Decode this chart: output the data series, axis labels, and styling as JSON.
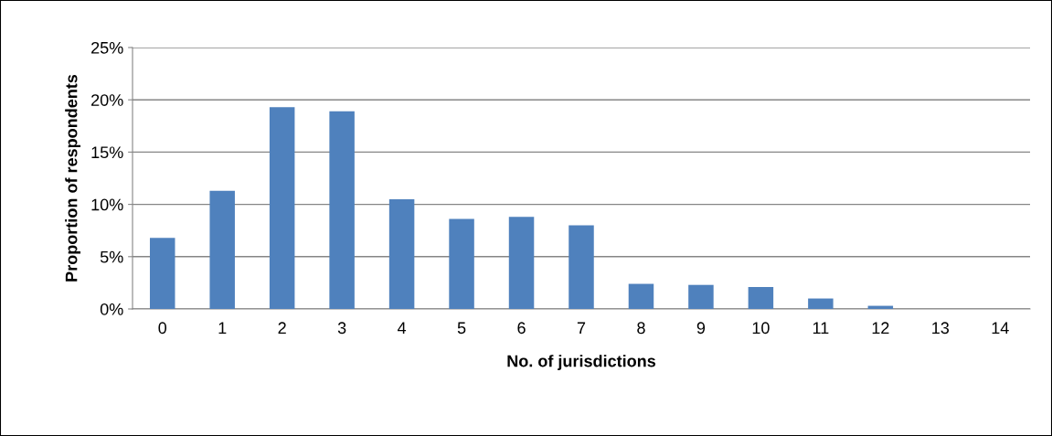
{
  "chart_data": {
    "type": "bar",
    "xlabel": "No. of jurisdictions",
    "ylabel": "Proportion of respondents",
    "categories": [
      "0",
      "1",
      "2",
      "3",
      "4",
      "5",
      "6",
      "7",
      "8",
      "9",
      "10",
      "11",
      "12",
      "13",
      "14"
    ],
    "series": [
      {
        "color": "#4f81bd",
        "values": [
          6.8,
          11.3,
          19.3,
          18.9,
          10.5,
          8.6,
          8.8,
          8.0,
          2.4,
          2.3,
          2.1,
          1.0,
          0.3,
          null,
          null
        ]
      }
    ],
    "ylim": [
      0,
      25
    ],
    "yticks": [
      {
        "value": 0,
        "label": "0%"
      },
      {
        "value": 5,
        "label": "5%"
      },
      {
        "value": 10,
        "label": "10%"
      },
      {
        "value": 15,
        "label": "15%"
      },
      {
        "value": 20,
        "label": "20%"
      },
      {
        "value": 25,
        "label": "25%"
      }
    ],
    "grid": "y",
    "legend": false
  }
}
